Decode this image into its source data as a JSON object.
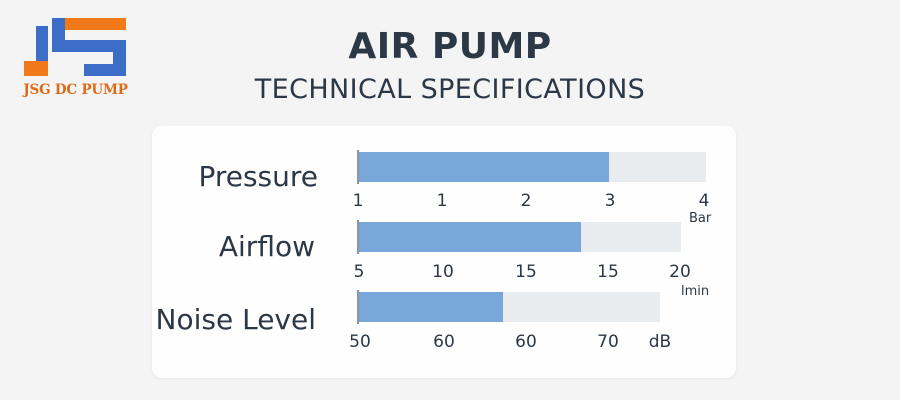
{
  "brand": {
    "logo_letters": "JS",
    "name": "JSG DC PUMP",
    "colors": {
      "blue": "#3c6dc7",
      "orange": "#f07a1a"
    }
  },
  "header": {
    "title": "AIR PUMP",
    "subtitle": "TECHNICAL SPECIFICATIONS"
  },
  "colors": {
    "fill": "#79a7da",
    "track": "#e8ecef",
    "text": "#2c3846"
  },
  "chart_data": {
    "type": "bar",
    "orientation": "horizontal",
    "metrics": [
      {
        "label": "Pressure",
        "ticks": [
          "1",
          "1",
          "2",
          "3",
          "4"
        ],
        "unit": "Bar",
        "value_fraction": 0.72
      },
      {
        "label": "Airflow",
        "ticks": [
          "5",
          "10",
          "15",
          "15",
          "20"
        ],
        "unit": "lmin",
        "value_fraction": 0.69
      },
      {
        "label": "Noise Level",
        "ticks": [
          "50",
          "60",
          "60",
          "70",
          "dB"
        ],
        "unit": "",
        "value_fraction": 0.48
      }
    ]
  }
}
